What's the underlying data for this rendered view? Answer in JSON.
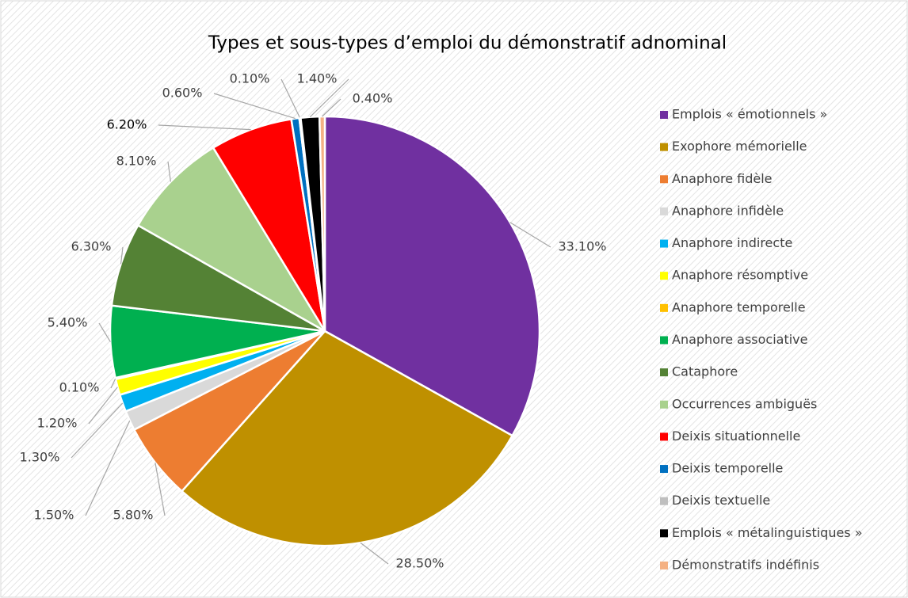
{
  "chart_data": {
    "type": "pie",
    "title": "Types et sous-types d’emploi du démonstratif adnominal",
    "categories": [
      "Emplois « émotionnels »",
      "Exophore mémorielle",
      "Anaphore fidèle",
      "Anaphore infidèle",
      "Anaphore indirecte",
      "Anaphore résomptive",
      "Anaphore temporelle",
      "Anaphore associative",
      "Cataphore",
      "Occurrences ambiguës",
      "Deixis situationnelle",
      "Deixis temporelle",
      "Deixis textuelle",
      "Emplois « métalinguistiques »",
      "Démonstratifs indéfinis"
    ],
    "values": [
      33.1,
      28.5,
      5.8,
      1.5,
      1.3,
      1.2,
      0.1,
      5.4,
      6.3,
      8.1,
      6.2,
      0.6,
      0.1,
      1.4,
      0.4
    ],
    "value_labels": [
      "33.10%",
      "28.50%",
      "5.80%",
      "1.50%",
      "1.30%",
      "1.20%",
      "0.10%",
      "5.40%",
      "6.30%",
      "8.10%",
      "6.20%",
      "0.60%",
      "0.10%",
      "1.40%",
      "0.40%"
    ],
    "colors": [
      "#7030a0",
      "#bf9000",
      "#ed7d31",
      "#d9d9d9",
      "#00b0f0",
      "#ffff00",
      "#ffc000",
      "#00b050",
      "#548235",
      "#a9d18e",
      "#ff0000",
      "#0070c0",
      "#bfbfbf",
      "#000000",
      "#f4b183"
    ],
    "legend": "right"
  }
}
